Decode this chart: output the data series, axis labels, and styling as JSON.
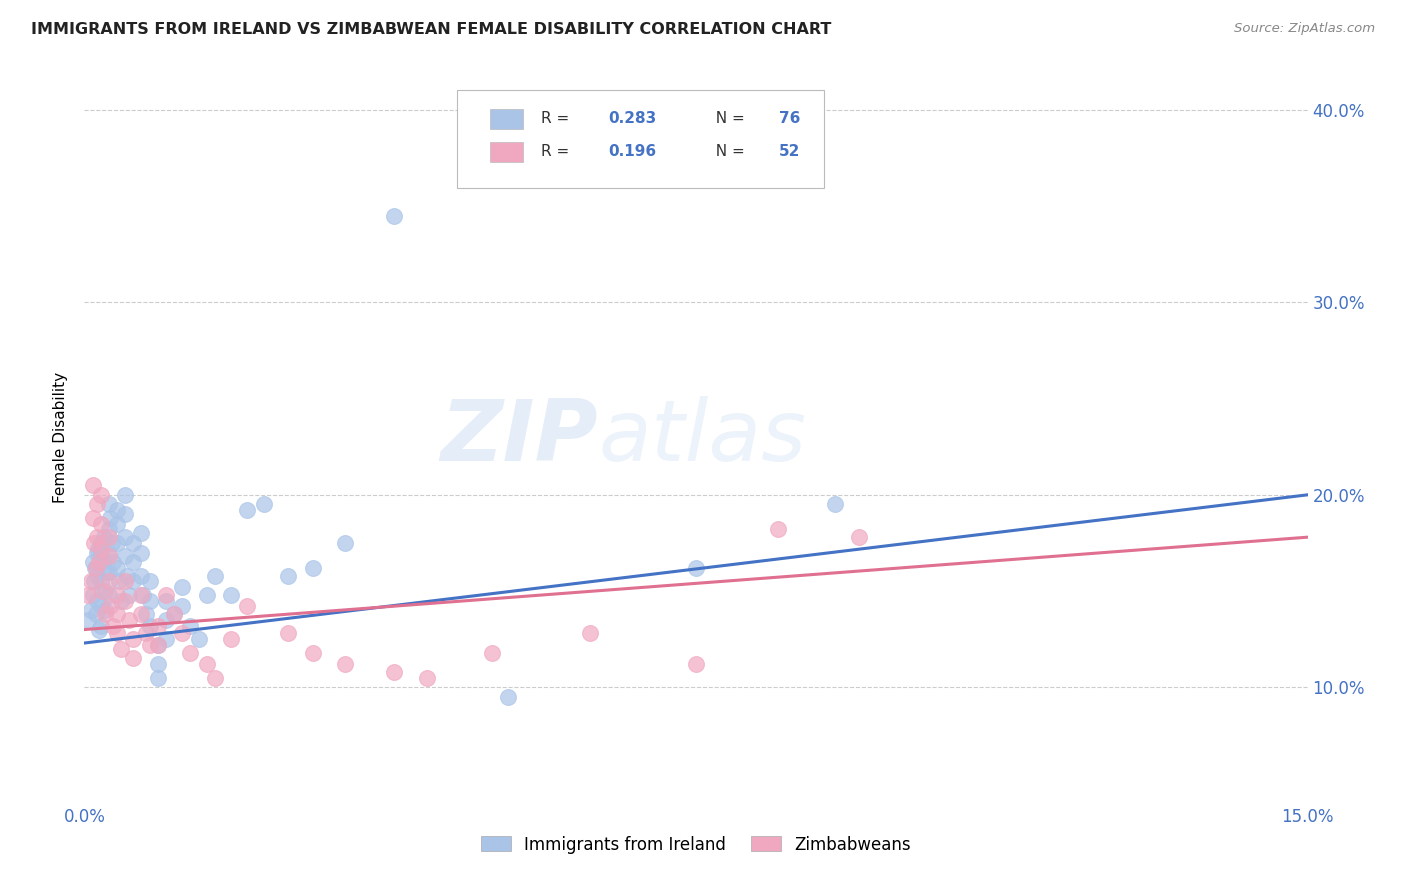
{
  "title": "IMMIGRANTS FROM IRELAND VS ZIMBABWEAN FEMALE DISABILITY CORRELATION CHART",
  "source": "Source: ZipAtlas.com",
  "ylabel": "Female Disability",
  "xlim": [
    0.0,
    0.15
  ],
  "ylim": [
    0.04,
    0.42
  ],
  "xticks": [
    0.0,
    0.03,
    0.06,
    0.09,
    0.12,
    0.15
  ],
  "yticks": [
    0.1,
    0.2,
    0.3,
    0.4
  ],
  "ytick_labels": [
    "10.0%",
    "20.0%",
    "30.0%",
    "40.0%"
  ],
  "xtick_labels": [
    "0.0%",
    "",
    "",
    "",
    "",
    "15.0%"
  ],
  "ireland_color": "#aac4e8",
  "zimbabwe_color": "#f0a8c0",
  "ireland_line_color": "#4472c4",
  "zimbabwe_line_color": "#e07090",
  "ireland_R": 0.283,
  "ireland_N": 76,
  "zimbabwe_R": 0.196,
  "zimbabwe_N": 52,
  "watermark_zip": "ZIP",
  "watermark_atlas": "atlas",
  "ireland_x": [
    0.0005,
    0.0008,
    0.001,
    0.001,
    0.0012,
    0.0013,
    0.0014,
    0.0015,
    0.0015,
    0.0016,
    0.0017,
    0.0018,
    0.002,
    0.002,
    0.002,
    0.002,
    0.002,
    0.0022,
    0.0024,
    0.0025,
    0.0025,
    0.0027,
    0.003,
    0.003,
    0.003,
    0.003,
    0.003,
    0.0032,
    0.0034,
    0.0035,
    0.004,
    0.004,
    0.004,
    0.004,
    0.0042,
    0.0045,
    0.005,
    0.005,
    0.005,
    0.005,
    0.0052,
    0.0055,
    0.006,
    0.006,
    0.006,
    0.007,
    0.007,
    0.007,
    0.0072,
    0.0075,
    0.008,
    0.008,
    0.008,
    0.009,
    0.009,
    0.009,
    0.01,
    0.01,
    0.01,
    0.011,
    0.012,
    0.012,
    0.013,
    0.014,
    0.015,
    0.016,
    0.018,
    0.02,
    0.022,
    0.025,
    0.028,
    0.032,
    0.038,
    0.052,
    0.075,
    0.092
  ],
  "ireland_y": [
    0.135,
    0.14,
    0.165,
    0.148,
    0.155,
    0.162,
    0.138,
    0.17,
    0.145,
    0.158,
    0.172,
    0.13,
    0.175,
    0.168,
    0.155,
    0.142,
    0.132,
    0.165,
    0.178,
    0.15,
    0.14,
    0.16,
    0.195,
    0.182,
    0.17,
    0.16,
    0.148,
    0.188,
    0.175,
    0.165,
    0.192,
    0.185,
    0.175,
    0.162,
    0.155,
    0.145,
    0.2,
    0.19,
    0.178,
    0.168,
    0.158,
    0.148,
    0.175,
    0.165,
    0.155,
    0.18,
    0.17,
    0.158,
    0.148,
    0.138,
    0.155,
    0.145,
    0.132,
    0.122,
    0.112,
    0.105,
    0.145,
    0.135,
    0.125,
    0.138,
    0.152,
    0.142,
    0.132,
    0.125,
    0.148,
    0.158,
    0.148,
    0.192,
    0.195,
    0.158,
    0.162,
    0.175,
    0.345,
    0.095,
    0.162,
    0.195
  ],
  "zimbabwe_x": [
    0.0005,
    0.0008,
    0.001,
    0.001,
    0.0012,
    0.0014,
    0.0015,
    0.0016,
    0.0018,
    0.002,
    0.002,
    0.002,
    0.0022,
    0.0025,
    0.003,
    0.003,
    0.003,
    0.0032,
    0.0035,
    0.004,
    0.004,
    0.004,
    0.0045,
    0.005,
    0.005,
    0.0055,
    0.006,
    0.006,
    0.007,
    0.007,
    0.0075,
    0.008,
    0.009,
    0.009,
    0.01,
    0.011,
    0.012,
    0.013,
    0.015,
    0.016,
    0.018,
    0.02,
    0.025,
    0.028,
    0.032,
    0.038,
    0.042,
    0.05,
    0.062,
    0.075,
    0.085,
    0.095
  ],
  "zimbabwe_y": [
    0.148,
    0.155,
    0.205,
    0.188,
    0.175,
    0.162,
    0.178,
    0.195,
    0.165,
    0.2,
    0.185,
    0.172,
    0.15,
    0.138,
    0.178,
    0.168,
    0.155,
    0.142,
    0.132,
    0.148,
    0.138,
    0.128,
    0.12,
    0.155,
    0.145,
    0.135,
    0.125,
    0.115,
    0.148,
    0.138,
    0.128,
    0.122,
    0.132,
    0.122,
    0.148,
    0.138,
    0.128,
    0.118,
    0.112,
    0.105,
    0.125,
    0.142,
    0.128,
    0.118,
    0.112,
    0.108,
    0.105,
    0.118,
    0.128,
    0.112,
    0.182,
    0.178
  ],
  "ireland_line_x0": 0.0,
  "ireland_line_y0": 0.123,
  "ireland_line_x1": 0.15,
  "ireland_line_y1": 0.2,
  "zimbabwe_line_x0": 0.0,
  "zimbabwe_line_y0": 0.13,
  "zimbabwe_line_x1": 0.15,
  "zimbabwe_line_y1": 0.178
}
